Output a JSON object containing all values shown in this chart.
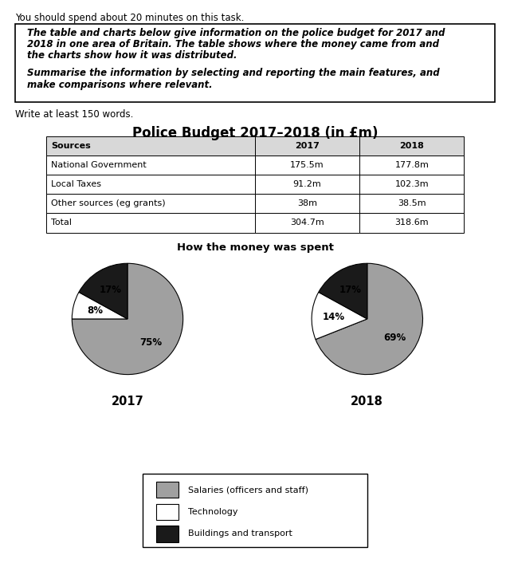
{
  "top_text": "You should spend about 20 minutes on this task.",
  "write_text": "Write at least 150 words.",
  "box_line1": "The table and charts below give information on the police budget for 2017 and",
  "box_line2": "2018 in one area of Britain. The table shows where the money came from and",
  "box_line3": "the charts show how it was distributed.",
  "box_line4": "Summarise the information by selecting and reporting the main features, and",
  "box_line5": "make comparisons where relevant.",
  "chart_title": "Police Budget 2017–2018 (in £m)",
  "pie_title": "How the money was spent",
  "table_headers": [
    "Sources",
    "2017",
    "2018"
  ],
  "table_rows": [
    [
      "National Government",
      "175.5m",
      "177.8m"
    ],
    [
      "Local Taxes",
      "91.2m",
      "102.3m"
    ],
    [
      "Other sources (eg grants)",
      "38m",
      "38.5m"
    ],
    [
      "Total",
      "304.7m",
      "318.6m"
    ]
  ],
  "pie_2017": [
    75,
    8,
    17
  ],
  "pie_2018": [
    69,
    14,
    17
  ],
  "pie_labels_2017": [
    "75%",
    "8%",
    "17%"
  ],
  "pie_labels_2018": [
    "69%",
    "14%",
    "17%"
  ],
  "pie_colors": [
    "#a0a0a0",
    "#ffffff",
    "#1a1a1a"
  ],
  "pie_edge_color": "#000000",
  "pie_year_2017": "2017",
  "pie_year_2018": "2018",
  "legend_labels": [
    "Salaries (officers and staff)",
    "Technology",
    "Buildings and transport"
  ],
  "legend_colors": [
    "#a0a0a0",
    "#ffffff",
    "#1a1a1a"
  ],
  "background_color": "#ffffff"
}
